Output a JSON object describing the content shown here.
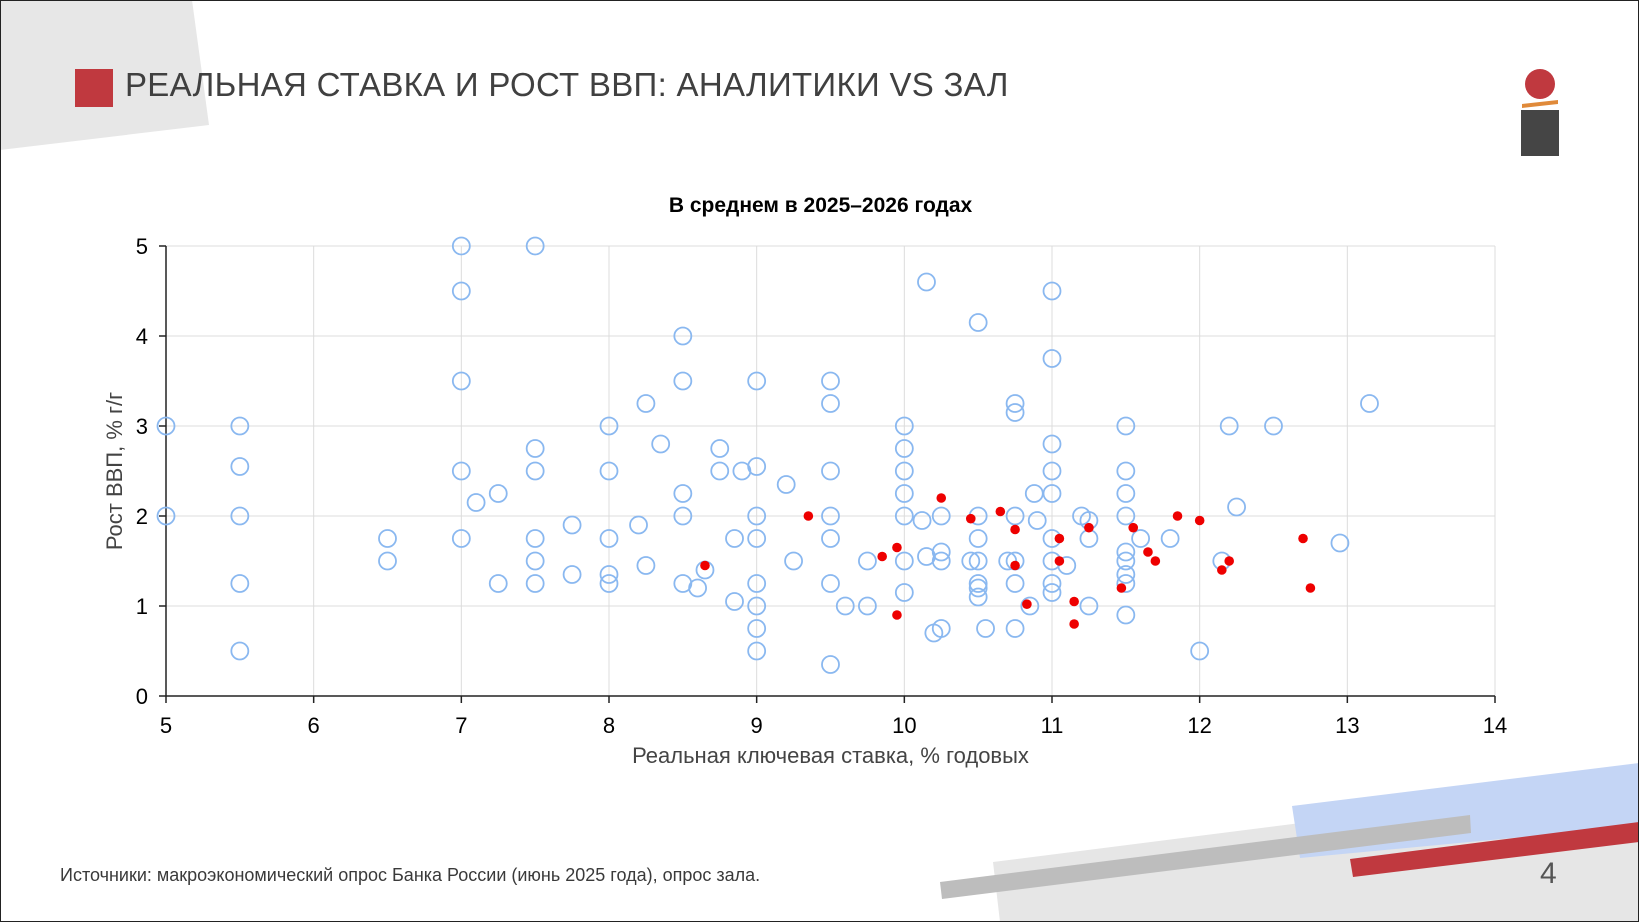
{
  "slide": {
    "title": "РЕАЛЬНАЯ СТАВКА И РОСТ ВВП: АНАЛИТИКИ VS ЗАЛ",
    "source": "Источники: макроэкономический опрос Банка России (июнь 2025 года), опрос зала.",
    "page_number": "4"
  },
  "colors": {
    "accent_red": "#c0393f",
    "analyst_marker": "#8ab8f0",
    "audience_marker": "#ee0000",
    "deco_blue": "#c4d5f5",
    "deco_gray": "#bdbdbd",
    "deco_light": "#e6e6e6"
  },
  "logo": {
    "icon": "bank-of-russia-logo-icon"
  },
  "chart_data": {
    "type": "scatter",
    "title": "В среднем в 2025–2026 годах",
    "xlabel": "Реальная ключевая ставка, % годовых",
    "ylabel": "Рост ВВП, % г/г",
    "xlim": [
      5,
      14
    ],
    "ylim": [
      0,
      5
    ],
    "xticks": [
      "5",
      "6",
      "7",
      "8",
      "9",
      "10",
      "11",
      "12",
      "13",
      "14"
    ],
    "yticks": [
      "0",
      "1",
      "2",
      "3",
      "4",
      "5"
    ],
    "grid": true,
    "series": [
      {
        "marker": "hollow-circle",
        "points": [
          [
            5.0,
            3.0
          ],
          [
            5.0,
            2.0
          ],
          [
            5.5,
            3.0
          ],
          [
            5.5,
            2.55
          ],
          [
            5.5,
            2.0
          ],
          [
            5.5,
            1.25
          ],
          [
            5.5,
            0.5
          ],
          [
            6.5,
            1.75
          ],
          [
            6.5,
            1.5
          ],
          [
            7.0,
            5.0
          ],
          [
            7.0,
            4.5
          ],
          [
            7.0,
            3.5
          ],
          [
            7.0,
            2.5
          ],
          [
            7.0,
            1.75
          ],
          [
            7.1,
            2.15
          ],
          [
            7.25,
            2.25
          ],
          [
            7.25,
            1.25
          ],
          [
            7.5,
            5.0
          ],
          [
            7.5,
            2.75
          ],
          [
            7.5,
            2.5
          ],
          [
            7.5,
            1.75
          ],
          [
            7.5,
            1.5
          ],
          [
            7.5,
            1.25
          ],
          [
            7.75,
            1.9
          ],
          [
            7.75,
            1.35
          ],
          [
            8.0,
            3.0
          ],
          [
            8.0,
            2.5
          ],
          [
            8.0,
            1.75
          ],
          [
            8.0,
            1.35
          ],
          [
            8.0,
            1.25
          ],
          [
            8.2,
            1.9
          ],
          [
            8.25,
            3.25
          ],
          [
            8.25,
            1.45
          ],
          [
            8.35,
            2.8
          ],
          [
            8.5,
            4.0
          ],
          [
            8.5,
            3.5
          ],
          [
            8.5,
            2.25
          ],
          [
            8.5,
            2.0
          ],
          [
            8.5,
            1.25
          ],
          [
            8.6,
            1.2
          ],
          [
            8.65,
            1.4
          ],
          [
            8.75,
            2.75
          ],
          [
            8.75,
            2.5
          ],
          [
            8.85,
            1.75
          ],
          [
            8.85,
            1.05
          ],
          [
            8.9,
            2.5
          ],
          [
            9.0,
            3.5
          ],
          [
            9.0,
            2.55
          ],
          [
            9.0,
            2.0
          ],
          [
            9.0,
            1.75
          ],
          [
            9.0,
            1.25
          ],
          [
            9.0,
            1.0
          ],
          [
            9.0,
            0.75
          ],
          [
            9.0,
            0.5
          ],
          [
            9.2,
            2.35
          ],
          [
            9.25,
            1.5
          ],
          [
            9.5,
            3.5
          ],
          [
            9.5,
            3.25
          ],
          [
            9.5,
            2.5
          ],
          [
            9.5,
            2.0
          ],
          [
            9.5,
            1.75
          ],
          [
            9.5,
            1.25
          ],
          [
            9.5,
            0.35
          ],
          [
            9.6,
            1.0
          ],
          [
            9.75,
            1.5
          ],
          [
            9.75,
            1.0
          ],
          [
            10.0,
            3.0
          ],
          [
            10.0,
            2.75
          ],
          [
            10.0,
            2.5
          ],
          [
            10.0,
            2.25
          ],
          [
            10.0,
            2.0
          ],
          [
            10.0,
            1.5
          ],
          [
            10.0,
            1.15
          ],
          [
            10.12,
            1.95
          ],
          [
            10.15,
            4.6
          ],
          [
            10.15,
            1.55
          ],
          [
            10.2,
            0.7
          ],
          [
            10.25,
            2.0
          ],
          [
            10.25,
            1.6
          ],
          [
            10.25,
            1.5
          ],
          [
            10.25,
            0.75
          ],
          [
            10.45,
            1.5
          ],
          [
            10.5,
            4.15
          ],
          [
            10.5,
            2.0
          ],
          [
            10.5,
            1.75
          ],
          [
            10.5,
            1.5
          ],
          [
            10.5,
            1.25
          ],
          [
            10.5,
            1.2
          ],
          [
            10.5,
            1.1
          ],
          [
            10.55,
            0.75
          ],
          [
            10.7,
            1.5
          ],
          [
            10.75,
            3.25
          ],
          [
            10.75,
            3.15
          ],
          [
            10.75,
            2.0
          ],
          [
            10.75,
            1.5
          ],
          [
            10.75,
            1.25
          ],
          [
            10.75,
            0.75
          ],
          [
            10.85,
            1.0
          ],
          [
            10.88,
            2.25
          ],
          [
            10.9,
            1.95
          ],
          [
            11.0,
            4.5
          ],
          [
            11.0,
            3.75
          ],
          [
            11.0,
            2.8
          ],
          [
            11.0,
            2.5
          ],
          [
            11.0,
            2.25
          ],
          [
            11.0,
            1.75
          ],
          [
            11.0,
            1.5
          ],
          [
            11.0,
            1.25
          ],
          [
            11.0,
            1.15
          ],
          [
            11.1,
            1.45
          ],
          [
            11.2,
            2.0
          ],
          [
            11.25,
            1.95
          ],
          [
            11.25,
            1.75
          ],
          [
            11.25,
            1.0
          ],
          [
            11.5,
            3.0
          ],
          [
            11.5,
            2.5
          ],
          [
            11.5,
            2.25
          ],
          [
            11.5,
            2.0
          ],
          [
            11.5,
            1.6
          ],
          [
            11.5,
            1.5
          ],
          [
            11.5,
            1.35
          ],
          [
            11.5,
            1.25
          ],
          [
            11.5,
            0.9
          ],
          [
            11.6,
            1.75
          ],
          [
            11.8,
            1.75
          ],
          [
            12.0,
            0.5
          ],
          [
            12.15,
            1.5
          ],
          [
            12.2,
            3.0
          ],
          [
            12.25,
            2.1
          ],
          [
            12.5,
            3.0
          ],
          [
            12.95,
            1.7
          ],
          [
            13.15,
            3.25
          ]
        ]
      },
      {
        "marker": "filled-dot",
        "points": [
          [
            8.65,
            1.45
          ],
          [
            9.35,
            2.0
          ],
          [
            9.85,
            1.55
          ],
          [
            9.95,
            1.65
          ],
          [
            9.95,
            0.9
          ],
          [
            10.25,
            2.2
          ],
          [
            10.45,
            1.97
          ],
          [
            10.65,
            2.05
          ],
          [
            10.75,
            1.85
          ],
          [
            10.75,
            1.45
          ],
          [
            10.83,
            1.02
          ],
          [
            11.05,
            1.75
          ],
          [
            11.05,
            1.5
          ],
          [
            11.15,
            1.05
          ],
          [
            11.15,
            0.8
          ],
          [
            11.25,
            1.87
          ],
          [
            11.47,
            1.2
          ],
          [
            11.55,
            1.87
          ],
          [
            11.65,
            1.6
          ],
          [
            11.7,
            1.5
          ],
          [
            11.85,
            2.0
          ],
          [
            12.0,
            1.95
          ],
          [
            12.15,
            1.4
          ],
          [
            12.2,
            1.5
          ],
          [
            12.7,
            1.75
          ],
          [
            12.75,
            1.2
          ]
        ]
      }
    ]
  }
}
